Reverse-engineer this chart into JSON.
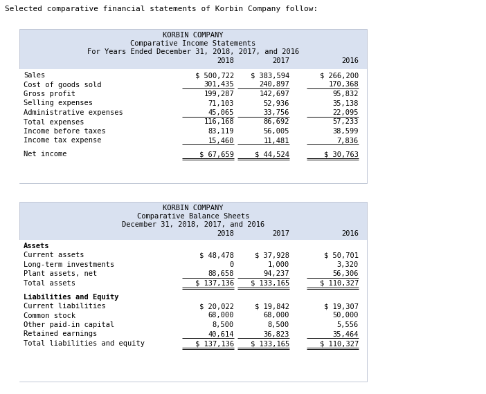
{
  "title_text": "Selected comparative financial statements of Korbin Company follow:",
  "table_bg": "#d9e1f0",
  "white_bg": "#ffffff",
  "font_family": "monospace",
  "income_title1": "KORBIN COMPANY",
  "income_title2": "Comparative Income Statements",
  "income_title3": "For Years Ended December 31, 2018, 2017, and 2016",
  "income_years": [
    "2018",
    "2017",
    "2016"
  ],
  "income_rows": [
    {
      "label": "Sales",
      "v2018": "$ 500,722",
      "v2017": "$ 383,594",
      "v2016": "$ 266,200",
      "bold": false,
      "bottom_border": false,
      "double_bottom": false
    },
    {
      "label": "Cost of goods sold",
      "v2018": "301,435",
      "v2017": "240,897",
      "v2016": "170,368",
      "bold": false,
      "bottom_border": true,
      "double_bottom": false
    },
    {
      "label": "Gross profit",
      "v2018": "199,287",
      "v2017": "142,697",
      "v2016": "95,832",
      "bold": false,
      "bottom_border": false,
      "double_bottom": false
    },
    {
      "label": "Selling expenses",
      "v2018": "71,103",
      "v2017": "52,936",
      "v2016": "35,138",
      "bold": false,
      "bottom_border": false,
      "double_bottom": false
    },
    {
      "label": "Administrative expenses",
      "v2018": "45,065",
      "v2017": "33,756",
      "v2016": "22,095",
      "bold": false,
      "bottom_border": true,
      "double_bottom": false
    },
    {
      "label": "Total expenses",
      "v2018": "116,168",
      "v2017": "86,692",
      "v2016": "57,233",
      "bold": false,
      "bottom_border": false,
      "double_bottom": false
    },
    {
      "label": "Income before taxes",
      "v2018": "83,119",
      "v2017": "56,005",
      "v2016": "38,599",
      "bold": false,
      "bottom_border": false,
      "double_bottom": false
    },
    {
      "label": "Income tax expense",
      "v2018": "15,460",
      "v2017": "11,481",
      "v2016": "7,836",
      "bold": false,
      "bottom_border": true,
      "double_bottom": false
    },
    {
      "label": "Net income",
      "v2018": "$ 67,659",
      "v2017": "$ 44,524",
      "v2016": "$ 30,763",
      "bold": false,
      "bottom_border": true,
      "double_bottom": true,
      "gap_above": true
    }
  ],
  "balance_title1": "KORBIN COMPANY",
  "balance_title2": "Comparative Balance Sheets",
  "balance_title3": "December 31, 2018, 2017, and 2016",
  "balance_years": [
    "2018",
    "2017",
    "2016"
  ],
  "balance_rows": [
    {
      "label": "Assets",
      "v2018": "",
      "v2017": "",
      "v2016": "",
      "bold": true,
      "bottom_border": false,
      "double_bottom": false,
      "gap_above": false
    },
    {
      "label": "Current assets",
      "v2018": "$ 48,478",
      "v2017": "$ 37,928",
      "v2016": "$ 50,701",
      "bold": false,
      "bottom_border": false,
      "double_bottom": false,
      "gap_above": false
    },
    {
      "label": "Long-term investments",
      "v2018": "0",
      "v2017": "1,000",
      "v2016": "3,320",
      "bold": false,
      "bottom_border": false,
      "double_bottom": false,
      "gap_above": false
    },
    {
      "label": "Plant assets, net",
      "v2018": "88,658",
      "v2017": "94,237",
      "v2016": "56,306",
      "bold": false,
      "bottom_border": true,
      "double_bottom": false,
      "gap_above": false
    },
    {
      "label": "Total assets",
      "v2018": "$ 137,136",
      "v2017": "$ 133,165",
      "v2016": "$ 110,327",
      "bold": false,
      "bottom_border": true,
      "double_bottom": true,
      "gap_above": false
    },
    {
      "label": "Liabilities and Equity",
      "v2018": "",
      "v2017": "",
      "v2016": "",
      "bold": true,
      "bottom_border": false,
      "double_bottom": false,
      "gap_above": true
    },
    {
      "label": "Current liabilities",
      "v2018": "$ 20,022",
      "v2017": "$ 19,842",
      "v2016": "$ 19,307",
      "bold": false,
      "bottom_border": false,
      "double_bottom": false,
      "gap_above": false
    },
    {
      "label": "Common stock",
      "v2018": "68,000",
      "v2017": "68,000",
      "v2016": "50,000",
      "bold": false,
      "bottom_border": false,
      "double_bottom": false,
      "gap_above": false
    },
    {
      "label": "Other paid-in capital",
      "v2018": "8,500",
      "v2017": "8,500",
      "v2016": "5,556",
      "bold": false,
      "bottom_border": false,
      "double_bottom": false,
      "gap_above": false
    },
    {
      "label": "Retained earnings",
      "v2018": "40,614",
      "v2017": "36,823",
      "v2016": "35,464",
      "bold": false,
      "bottom_border": true,
      "double_bottom": false,
      "gap_above": false
    },
    {
      "label": "Total liabilities and equity",
      "v2018": "$ 137,136",
      "v2017": "$ 133,165",
      "v2016": "$ 110,327",
      "bold": false,
      "bottom_border": true,
      "double_bottom": true,
      "gap_above": false
    }
  ]
}
